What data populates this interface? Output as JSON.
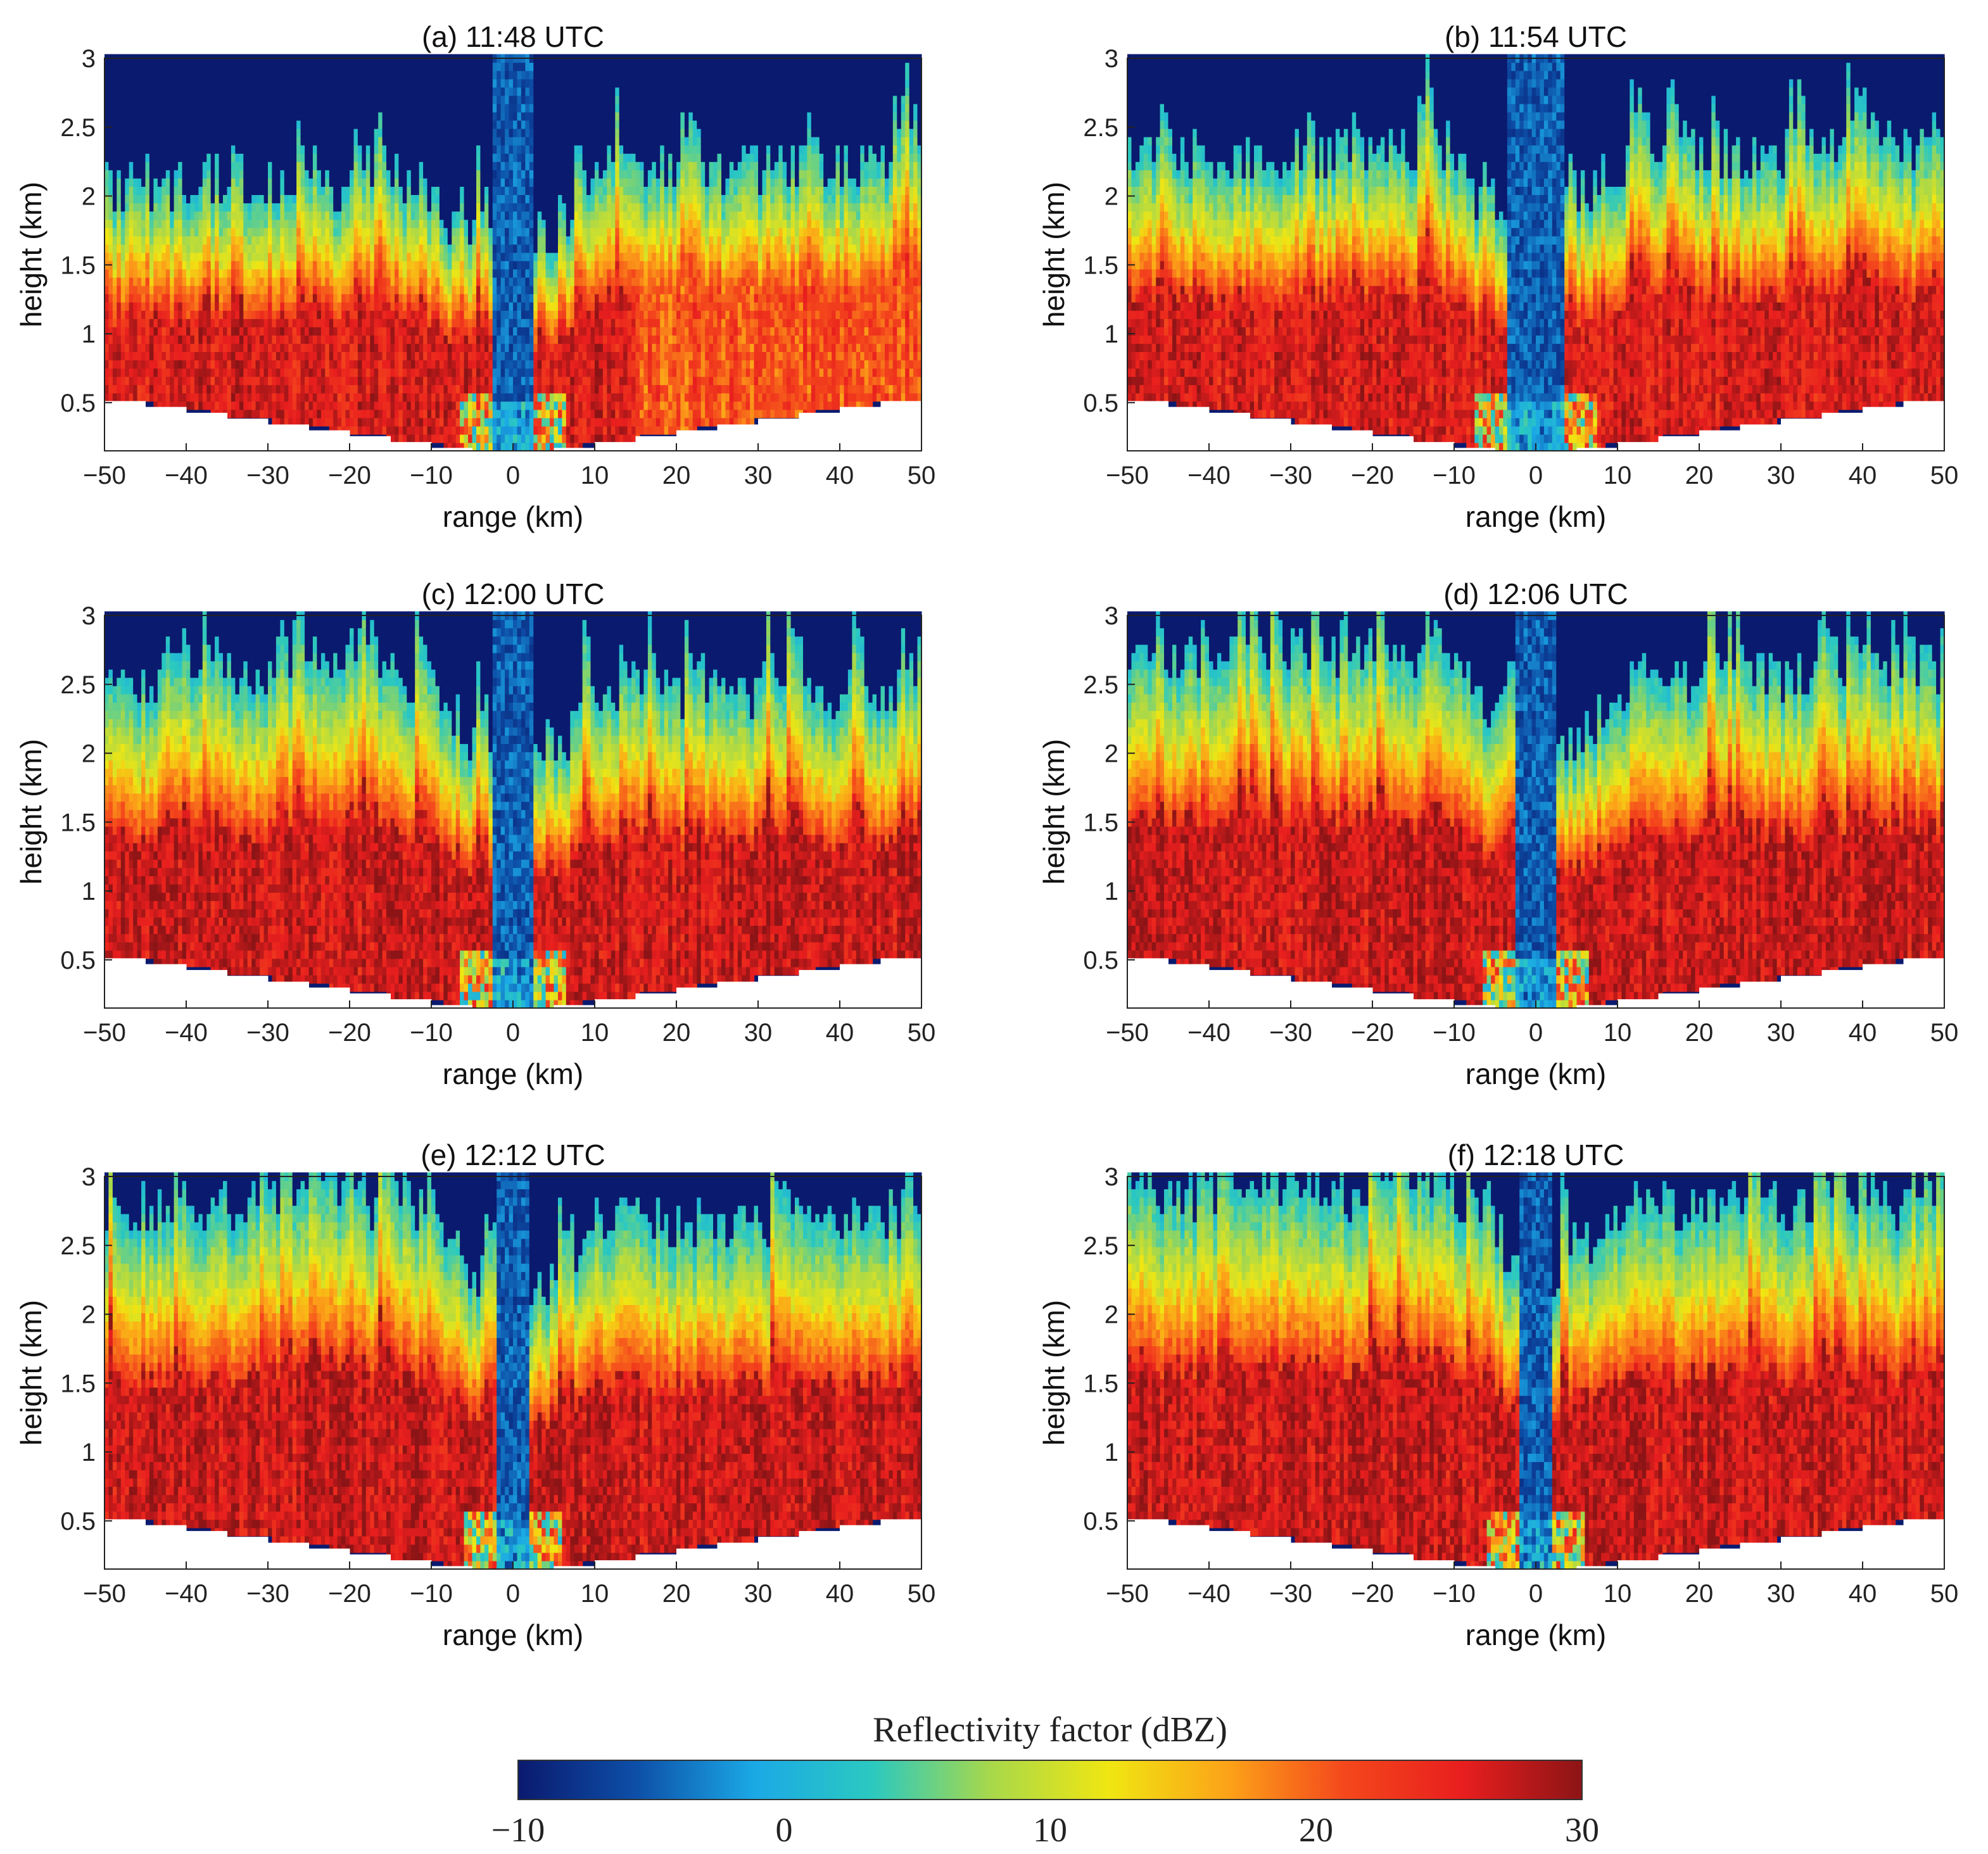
{
  "chart_data": {
    "type": "heatmap",
    "figure": "Radar reflectivity cross-sections (range-height) at six times",
    "x_axis": {
      "label": "range (km)",
      "lim": [
        -50,
        50
      ],
      "ticks": [
        -50,
        -40,
        -30,
        -20,
        -10,
        0,
        10,
        20,
        30,
        40,
        50
      ]
    },
    "y_axis": {
      "label": "height (km)",
      "lim": [
        0.15,
        3
      ],
      "ticks": [
        0.5,
        1,
        1.5,
        2,
        2.5,
        3
      ]
    },
    "colorbar": {
      "label": "Reflectivity factor (dBZ)",
      "lim": [
        -10,
        30
      ],
      "ticks": [
        -10,
        0,
        10,
        20,
        30
      ],
      "colormap": "jet",
      "stops": [
        "#0a1a6e",
        "#0d4fa8",
        "#1ba9e6",
        "#2bc9c0",
        "#a8d84a",
        "#f0e612",
        "#fca318",
        "#f4471c",
        "#e81e1e",
        "#8c1416"
      ]
    },
    "panels": [
      {
        "title": "(a) 11:48 UTC",
        "echo_top_left_km": 1.8,
        "echo_top_right_km": 1.9,
        "gap_halfwidth_km": 2.5,
        "max_dbz": 29
      },
      {
        "title": "(b) 11:54 UTC",
        "echo_top_left_km": 2.0,
        "echo_top_right_km": 2.0,
        "gap_halfwidth_km": 3.5,
        "max_dbz": 29
      },
      {
        "title": "(c) 12:00 UTC",
        "echo_top_left_km": 2.2,
        "echo_top_right_km": 2.1,
        "gap_halfwidth_km": 2.5,
        "max_dbz": 30
      },
      {
        "title": "(d) 12:06 UTC",
        "echo_top_left_km": 2.3,
        "echo_top_right_km": 2.2,
        "gap_halfwidth_km": 2.5,
        "max_dbz": 30
      },
      {
        "title": "(e) 12:12 UTC",
        "echo_top_left_km": 2.4,
        "echo_top_right_km": 2.3,
        "gap_halfwidth_km": 2.0,
        "max_dbz": 30
      },
      {
        "title": "(f) 12:18 UTC",
        "echo_top_left_km": 2.5,
        "echo_top_right_km": 2.4,
        "gap_halfwidth_km": 2.0,
        "max_dbz": 30
      }
    ]
  }
}
